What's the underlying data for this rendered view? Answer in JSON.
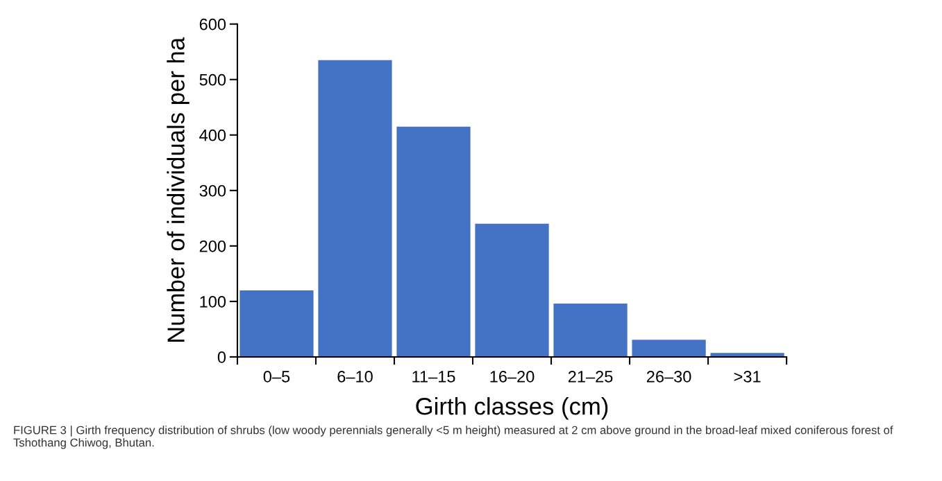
{
  "chart_data": {
    "type": "bar",
    "xlabel": "Girth classes (cm)",
    "ylabel": "Number of individuals per ha",
    "categories": [
      "0–5",
      "6–10",
      "11–15",
      "16–20",
      "21–25",
      "26–30",
      ">31"
    ],
    "values": [
      120,
      535,
      415,
      240,
      96,
      31,
      7
    ],
    "color": "#4472c4",
    "ylim": [
      0,
      600
    ],
    "yticks": [
      0,
      100,
      200,
      300,
      400,
      500,
      600
    ],
    "grid": false,
    "annotations": [
      "FIGURE 3 | Girth frequency distribution of shrubs (low woody perennials generally <5 m height) measured at 2 cm above ground in the broad-leaf mixed coniferous forest of Tshothang Chiwog, Bhutan."
    ]
  }
}
